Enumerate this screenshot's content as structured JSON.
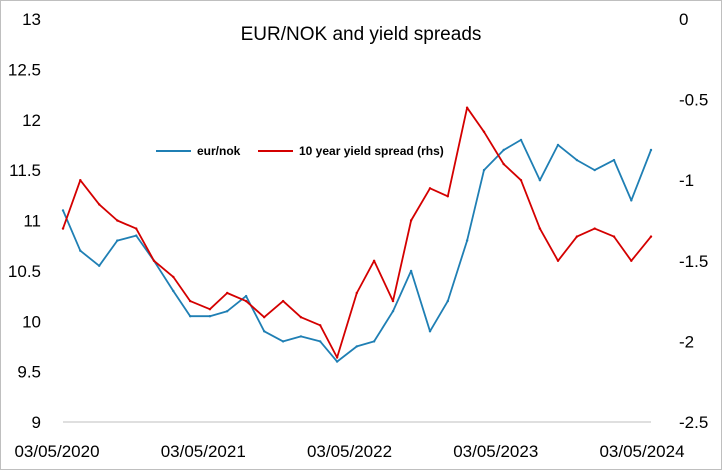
{
  "chart_data": {
    "type": "line",
    "title": "EUR/NOK and yield spreads",
    "xlabel": "",
    "ylabel": "",
    "y2label": "",
    "x_ticks": [
      "03/05/2020",
      "03/05/2021",
      "03/05/2022",
      "03/05/2023",
      "03/05/2024"
    ],
    "ylim": [
      9,
      13
    ],
    "y_ticks": [
      "9",
      "9.5",
      "10",
      "10.5",
      "11",
      "11.5",
      "12",
      "12.5",
      "13"
    ],
    "y2lim": [
      -2.5,
      0
    ],
    "y2_ticks": [
      "-2.5",
      "-2",
      "-1.5",
      "-1",
      "-0.5",
      "0"
    ],
    "grid": false,
    "legend_position": "upper-left",
    "x": [
      "2020-05-03",
      "2020-06-15",
      "2020-08-01",
      "2020-09-15",
      "2020-11-01",
      "2020-12-15",
      "2021-02-01",
      "2021-03-15",
      "2021-05-03",
      "2021-06-15",
      "2021-08-01",
      "2021-09-15",
      "2021-11-01",
      "2021-12-15",
      "2022-02-01",
      "2022-03-15",
      "2022-05-03",
      "2022-06-15",
      "2022-08-01",
      "2022-09-15",
      "2022-11-01",
      "2022-12-15",
      "2023-02-01",
      "2023-03-15",
      "2023-05-03",
      "2023-06-15",
      "2023-08-01",
      "2023-09-15",
      "2023-11-01",
      "2023-12-15",
      "2024-02-01",
      "2024-03-15",
      "2024-05-03"
    ],
    "series": [
      {
        "name": "eur/nok",
        "axis": "left",
        "color": "#1f7fb4",
        "values": [
          11.1,
          10.7,
          10.55,
          10.8,
          10.85,
          10.6,
          10.3,
          10.05,
          10.05,
          10.1,
          10.25,
          9.9,
          9.8,
          9.85,
          9.8,
          9.6,
          9.75,
          9.8,
          10.1,
          10.5,
          9.9,
          10.2,
          10.8,
          11.5,
          11.7,
          11.8,
          11.4,
          11.75,
          11.6,
          11.5,
          11.6,
          11.2,
          11.7
        ]
      },
      {
        "name": "10 year yield spread (rhs)",
        "axis": "right",
        "color": "#d40000",
        "values": [
          -1.3,
          -1.0,
          -1.15,
          -1.25,
          -1.3,
          -1.5,
          -1.6,
          -1.75,
          -1.8,
          -1.7,
          -1.75,
          -1.85,
          -1.75,
          -1.85,
          -1.9,
          -2.1,
          -1.7,
          -1.5,
          -1.75,
          -1.25,
          -1.05,
          -1.1,
          -0.55,
          -0.7,
          -0.9,
          -1.0,
          -1.3,
          -1.5,
          -1.35,
          -1.3,
          -1.35,
          -1.5,
          -1.35
        ]
      }
    ]
  }
}
